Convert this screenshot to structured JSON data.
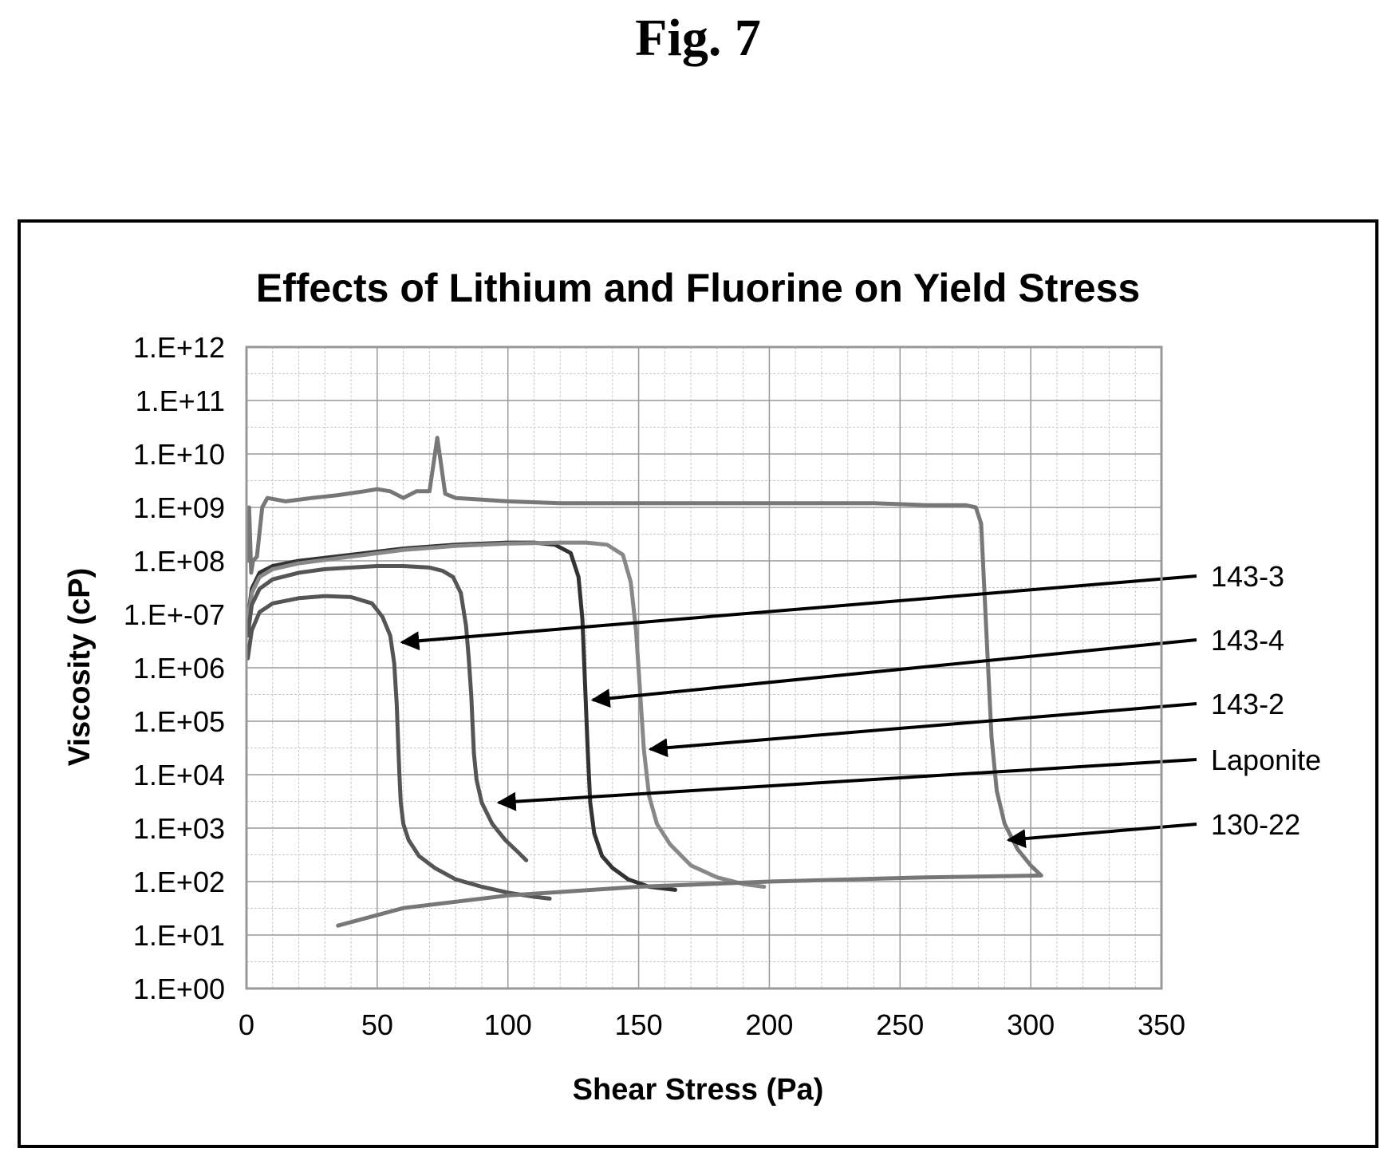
{
  "figure_label": "Fig. 7",
  "chart_data": {
    "type": "line",
    "title": "Effects of Lithium and Fluorine on Yield Stress",
    "xlabel": "Shear Stress (Pa)",
    "ylabel": "Viscosity (cP)",
    "xlim": [
      0,
      350
    ],
    "ylim_log10": [
      0,
      12
    ],
    "y_scale": "log",
    "grid": true,
    "x_ticks": [
      "0",
      "50",
      "100",
      "150",
      "200",
      "250",
      "300",
      "350"
    ],
    "y_ticks": [
      "1.E+00",
      "1.E+01",
      "1.E+02",
      "1.E+03",
      "1.E+04",
      "1.E+05",
      "1.E+06",
      "1.E+-07",
      "1.E+08",
      "1.E+09",
      "1.E+10",
      "1.E+11",
      "1.E+12"
    ],
    "series": [
      {
        "name": "143-3",
        "color": "#555555",
        "x": [
          0.5,
          2,
          5,
          10,
          20,
          30,
          40,
          48,
          52,
          55,
          56.5,
          57.5,
          58,
          58.5,
          59,
          60,
          62,
          66,
          72,
          80,
          90,
          100,
          110,
          116
        ],
        "y": [
          1500000.0,
          5000000.0,
          11000000.0,
          16000000.0,
          20000000.0,
          22000000.0,
          21000000.0,
          16000000.0,
          9000000.0,
          4000000.0,
          1200000.0,
          200000.0,
          40000.0,
          10000.0,
          3000.0,
          1200.0,
          600.0,
          300.0,
          180.0,
          110.0,
          80,
          62,
          52,
          48
        ]
      },
      {
        "name": "143-4",
        "color": "#333333",
        "x": [
          0.5,
          2,
          5,
          10,
          20,
          40,
          60,
          80,
          100,
          110,
          118,
          124,
          127,
          128.5,
          129.5,
          130.5,
          131.5,
          133,
          136,
          140,
          146,
          154,
          164
        ],
        "y": [
          8000000.0,
          30000000.0,
          60000000.0,
          80000000.0,
          100000000.0,
          130000000.0,
          170000000.0,
          200000000.0,
          220000000.0,
          220000000.0,
          200000000.0,
          140000000.0,
          50000000.0,
          8000000.0,
          500000.0,
          30000.0,
          3000.0,
          800.0,
          300.0,
          180.0,
          110.0,
          80,
          70
        ]
      },
      {
        "name": "143-2",
        "color": "#888888",
        "x": [
          0.5,
          2,
          5,
          10,
          20,
          40,
          60,
          80,
          100,
          120,
          130,
          138,
          144,
          147,
          149,
          150.5,
          152,
          154,
          157,
          162,
          170,
          180,
          190,
          198
        ],
        "y": [
          7000000.0,
          25000000.0,
          50000000.0,
          70000000.0,
          90000000.0,
          120000000.0,
          160000000.0,
          190000000.0,
          210000000.0,
          220000000.0,
          220000000.0,
          200000000.0,
          130000000.0,
          40000000.0,
          5000000.0,
          400000.0,
          30000.0,
          4000.0,
          1200.0,
          500.0,
          200.0,
          120.0,
          90,
          80
        ]
      },
      {
        "name": "Laponite",
        "color": "#555555",
        "x": [
          0.5,
          2,
          5,
          10,
          20,
          30,
          40,
          50,
          60,
          70,
          75,
          79,
          82,
          84,
          85,
          86,
          86.5,
          87,
          88,
          90,
          94,
          99,
          104,
          107
        ],
        "y": [
          4000000.0,
          15000000.0,
          30000000.0,
          45000000.0,
          60000000.0,
          70000000.0,
          75000000.0,
          80000000.0,
          80000000.0,
          75000000.0,
          65000000.0,
          50000000.0,
          25000000.0,
          6000000.0,
          1500000.0,
          300000.0,
          80000.0,
          25000.0,
          8000.0,
          3000.0,
          1200.0,
          600.0,
          350.0,
          250.0
        ]
      },
      {
        "name": "130-22",
        "color": "#777777",
        "x": [
          0.5,
          1,
          1.8,
          2.5,
          4,
          6,
          8,
          15,
          25,
          35,
          45,
          50,
          55,
          60,
          65,
          70,
          73,
          76,
          80,
          90,
          100,
          120,
          140,
          160,
          180,
          200,
          220,
          240,
          260,
          275,
          279,
          281,
          282,
          283,
          284,
          285,
          287,
          290,
          295,
          300,
          304,
          260,
          200,
          150,
          100,
          60,
          35
        ],
        "y": [
          100000000.0,
          1000000000.0,
          60000000.0,
          100000000.0,
          120000000.0,
          1000000000.0,
          1500000000.0,
          1300000000.0,
          1500000000.0,
          1700000000.0,
          2000000000.0,
          2200000000.0,
          2000000000.0,
          1500000000.0,
          2000000000.0,
          2000000000.0,
          20000000000.0,
          1800000000.0,
          1500000000.0,
          1400000000.0,
          1300000000.0,
          1200000000.0,
          1200000000.0,
          1200000000.0,
          1200000000.0,
          1200000000.0,
          1200000000.0,
          1200000000.0,
          1100000000.0,
          1100000000.0,
          1000000000.0,
          500000000.0,
          50000000.0,
          5000000.0,
          500000.0,
          50000.0,
          5000.0,
          1200.0,
          400.0,
          200.0,
          130.0,
          120.0,
          100.0,
          80,
          55,
          32,
          15
        ]
      }
    ],
    "annotations": [
      {
        "label": "143-3",
        "arrow_x": 57,
        "arrow_y": 3000000.0
      },
      {
        "label": "143-4",
        "arrow_x": 130,
        "arrow_y": 250000.0
      },
      {
        "label": "143-2",
        "arrow_x": 152,
        "arrow_y": 30000.0
      },
      {
        "label": "Laponite",
        "arrow_x": 94,
        "arrow_y": 3000.0
      },
      {
        "label": "130-22",
        "arrow_x": 289,
        "arrow_y": 600.0
      }
    ]
  }
}
